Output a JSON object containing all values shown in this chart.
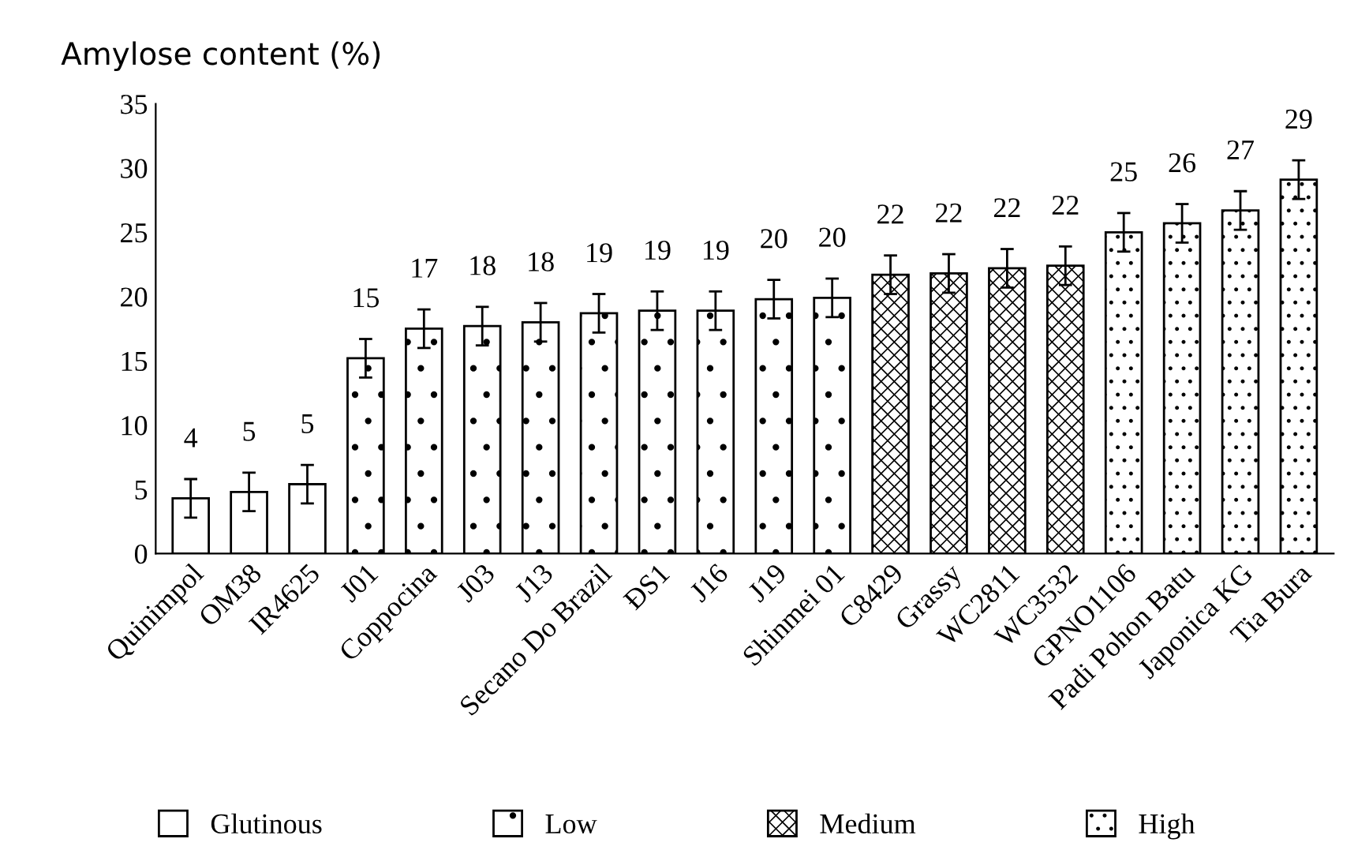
{
  "chart_data": {
    "type": "bar",
    "ylabel": "Amylose content (%)",
    "categories": [
      "Quinimpol",
      "OM38",
      "IR4625",
      "J01",
      "Coppocina",
      "J03",
      "J13",
      "Secano Do Brazil",
      "ĐS1",
      "J16",
      "J19",
      "Shinmei 01",
      "C8429",
      "Grassy",
      "WC2811",
      "WC3532",
      "GPNO1106",
      "Padi Pohon Batu",
      "Japonica KG",
      "Tia Bura"
    ],
    "series": [
      {
        "name": "Glutinous",
        "color": "#ffffff",
        "values": [
          4.3,
          4.8,
          5.4,
          null,
          null,
          null,
          null,
          null,
          null,
          null,
          null,
          null,
          null,
          null,
          null,
          null,
          null,
          null,
          null,
          null
        ],
        "errors": [
          1.5,
          1.5,
          1.5,
          null,
          null,
          null,
          null,
          null,
          null,
          null,
          null,
          null,
          null,
          null,
          null,
          null,
          null,
          null,
          null,
          null
        ],
        "value_labels": [
          "4",
          "5",
          "5",
          null,
          null,
          null,
          null,
          null,
          null,
          null,
          null,
          null,
          null,
          null,
          null,
          null,
          null,
          null,
          null,
          null
        ]
      },
      {
        "name": "Low",
        "color": "#ffffff",
        "values": [
          null,
          null,
          null,
          15.2,
          17.5,
          17.7,
          18.0,
          18.7,
          18.9,
          18.9,
          19.8,
          19.9,
          null,
          null,
          null,
          null,
          null,
          null,
          null,
          null
        ],
        "errors": [
          null,
          null,
          null,
          1.5,
          1.5,
          1.5,
          1.5,
          1.5,
          1.5,
          1.5,
          1.5,
          1.5,
          null,
          null,
          null,
          null,
          null,
          null,
          null,
          null
        ],
        "value_labels": [
          null,
          null,
          null,
          "15",
          "17",
          "18",
          "18",
          "19",
          "19",
          "19",
          "20",
          "20",
          null,
          null,
          null,
          null,
          null,
          null,
          null,
          null
        ]
      },
      {
        "name": "Medium",
        "color": "#ffffff",
        "values": [
          null,
          null,
          null,
          null,
          null,
          null,
          null,
          null,
          null,
          null,
          null,
          null,
          21.7,
          21.8,
          22.2,
          22.4,
          null,
          null,
          null,
          null
        ],
        "errors": [
          null,
          null,
          null,
          null,
          null,
          null,
          null,
          null,
          null,
          null,
          null,
          null,
          1.5,
          1.5,
          1.5,
          1.5,
          null,
          null,
          null,
          null
        ],
        "value_labels": [
          null,
          null,
          null,
          null,
          null,
          null,
          null,
          null,
          null,
          null,
          null,
          null,
          "22",
          "22",
          "22",
          "22",
          null,
          null,
          null,
          null
        ]
      },
      {
        "name": "High",
        "color": "#ffffff",
        "values": [
          null,
          null,
          null,
          null,
          null,
          null,
          null,
          null,
          null,
          null,
          null,
          null,
          null,
          null,
          null,
          null,
          25.0,
          25.7,
          26.7,
          29.1
        ],
        "errors": [
          null,
          null,
          null,
          null,
          null,
          null,
          null,
          null,
          null,
          null,
          null,
          null,
          null,
          null,
          null,
          null,
          1.5,
          1.5,
          1.5,
          1.5
        ],
        "value_labels": [
          null,
          null,
          null,
          null,
          null,
          null,
          null,
          null,
          null,
          null,
          null,
          null,
          null,
          null,
          null,
          null,
          "25",
          "26",
          "27",
          "29"
        ]
      }
    ],
    "ylim": [
      0,
      35
    ],
    "yticks": [
      0,
      5,
      10,
      15,
      20,
      25,
      30,
      35
    ],
    "grid": false,
    "legend": "bottom"
  }
}
